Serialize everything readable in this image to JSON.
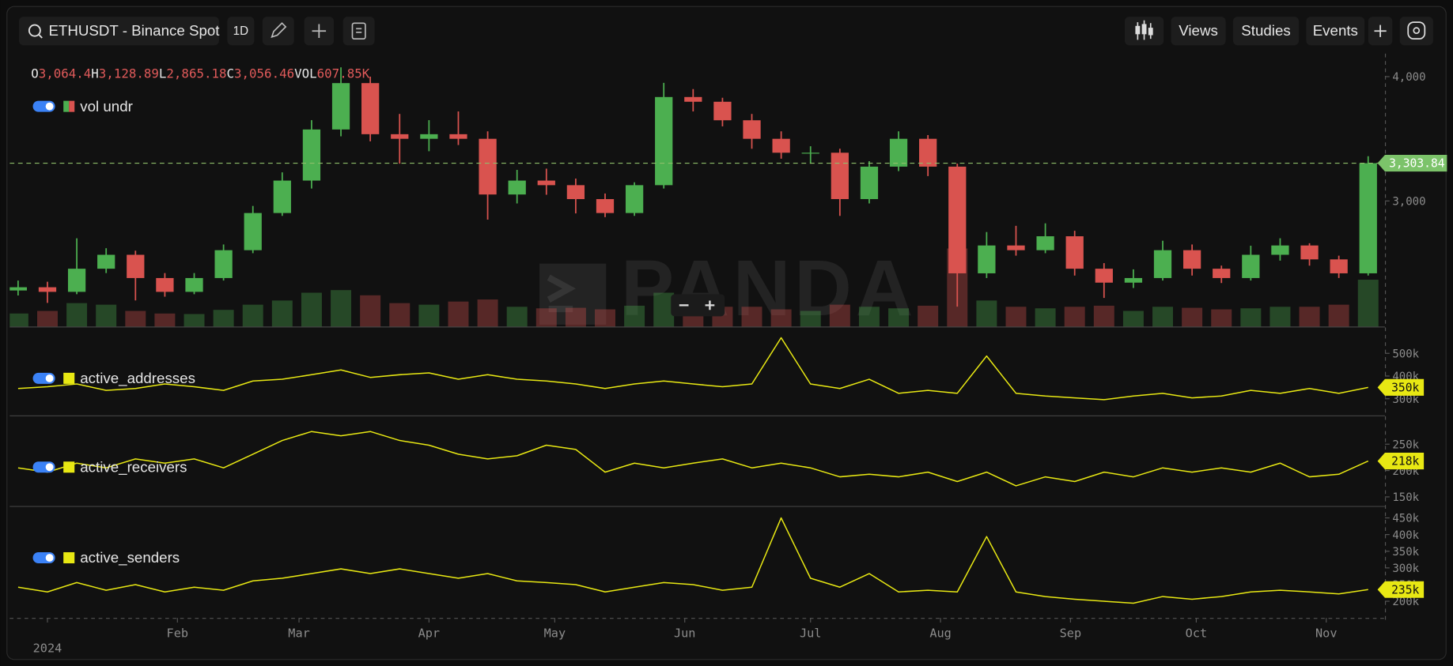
{
  "toolbar": {
    "symbol": "ETHUSDT - Binance Spot",
    "interval": "1D",
    "buttons": [
      "Views",
      "Studies",
      "Events"
    ]
  },
  "watermark": "PANDA",
  "ohlc_readout": {
    "keys": [
      "O",
      "H",
      "L",
      "C",
      "VOL"
    ],
    "values": [
      "3,064.4",
      "3,128.89",
      "2,865.18",
      "3,056.46",
      "607.85K"
    ]
  },
  "chart_data": [
    {
      "type": "candlestick",
      "name": "vol undr",
      "up_color": "#4caf50",
      "down_color": "#d9534f",
      "x": [
        -7,
        0,
        7,
        14,
        21,
        28,
        35,
        42,
        49,
        56,
        63,
        70,
        77,
        84,
        91,
        98,
        105,
        112,
        119,
        126,
        133,
        140,
        147,
        154,
        161,
        168,
        175,
        182,
        189,
        196,
        203,
        210,
        217,
        224,
        231,
        238,
        245,
        252,
        259,
        266,
        273,
        280,
        287,
        294,
        301,
        308,
        315
      ],
      "open": [
        2280,
        2306,
        2269,
        2455,
        2567,
        2380,
        2269,
        2380,
        2604,
        2903,
        3164,
        3575,
        3948,
        3537,
        3500,
        3537,
        3500,
        3052,
        3164,
        3127,
        3015,
        2903,
        3127,
        3836,
        3798,
        3649,
        3500,
        3388,
        3388,
        3015,
        3276,
        3500,
        3276,
        2418,
        2642,
        2604,
        2716,
        2455,
        2343,
        2380,
        2604,
        2455,
        2380,
        2567,
        2642,
        2530,
        2418
      ],
      "high": [
        2360,
        2350,
        2700,
        2620,
        2600,
        2420,
        2420,
        2650,
        2960,
        3230,
        3650,
        4075,
        4000,
        3700,
        3650,
        3720,
        3560,
        3250,
        3260,
        3180,
        3060,
        3150,
        3950,
        3900,
        3830,
        3700,
        3560,
        3440,
        3420,
        3320,
        3560,
        3530,
        3300,
        2750,
        2800,
        2820,
        2760,
        2500,
        2450,
        2680,
        2650,
        2480,
        2640,
        2700,
        2660,
        2560,
        3360
      ],
      "low": [
        2240,
        2180,
        2250,
        2420,
        2200,
        2230,
        2250,
        2360,
        2580,
        2880,
        3100,
        3520,
        3480,
        3300,
        3400,
        3450,
        2850,
        2980,
        3050,
        2900,
        2870,
        2880,
        3100,
        3720,
        3600,
        3420,
        3340,
        3300,
        2880,
        2980,
        3240,
        3200,
        2150,
        2380,
        2560,
        2580,
        2400,
        2220,
        2300,
        2360,
        2400,
        2340,
        2360,
        2520,
        2480,
        2380,
        2400
      ],
      "close": [
        2306,
        2269,
        2455,
        2567,
        2380,
        2269,
        2380,
        2604,
        2903,
        3164,
        3575,
        3948,
        3537,
        3500,
        3537,
        3500,
        3052,
        3164,
        3127,
        3015,
        2903,
        3127,
        3836,
        3798,
        3649,
        3500,
        3388,
        3388,
        3015,
        3276,
        3500,
        3276,
        2418,
        2642,
        2604,
        2716,
        2455,
        2343,
        2380,
        2604,
        2455,
        2380,
        2567,
        2642,
        2530,
        2418,
        3303.84
      ],
      "volume": [
        250,
        300,
        450,
        420,
        300,
        250,
        240,
        320,
        420,
        500,
        650,
        700,
        600,
        450,
        420,
        480,
        520,
        380,
        350,
        360,
        330,
        400,
        650,
        450,
        380,
        380,
        330,
        300,
        420,
        380,
        350,
        400,
        1500,
        500,
        380,
        350,
        380,
        400,
        300,
        380,
        360,
        330,
        350,
        380,
        380,
        420,
        900
      ],
      "volume_lim": [
        0,
        1600
      ],
      "xlim": [
        -9,
        319
      ],
      "ylim": [
        1990,
        4170
      ],
      "yticks": [
        {
          "value": 3000,
          "label": "3,000"
        },
        {
          "value": 4000,
          "label": "4,000"
        }
      ],
      "price_line": {
        "value": 3303.84,
        "label": "3,303.84"
      }
    },
    {
      "type": "line",
      "x": [
        -7,
        0,
        7,
        14,
        21,
        28,
        35,
        42,
        49,
        56,
        63,
        70,
        77,
        84,
        91,
        98,
        105,
        112,
        119,
        126,
        133,
        140,
        147,
        154,
        161,
        168,
        175,
        182,
        189,
        196,
        203,
        210,
        217,
        224,
        231,
        238,
        245,
        252,
        259,
        266,
        273,
        280,
        287,
        294,
        301,
        308,
        315
      ],
      "xlim": [
        -9,
        319
      ],
      "ylim": [
        231000,
        610000
      ],
      "yticks": [
        {
          "value": 500000,
          "label": "500k"
        },
        {
          "value": 400000,
          "label": "400k"
        },
        {
          "value": 300000,
          "label": "300k"
        }
      ],
      "series": [
        {
          "name": "active_addresses",
          "color": "#e8e813",
          "values": [
            345000,
            353000,
            365000,
            337000,
            345000,
            365000,
            353000,
            337000,
            378000,
            386000,
            406000,
            427000,
            394000,
            406000,
            414000,
            386000,
            406000,
            386000,
            378000,
            365000,
            345000,
            365000,
            378000,
            365000,
            353000,
            365000,
            569000,
            365000,
            345000,
            386000,
            324000,
            337000,
            324000,
            488000,
            324000,
            312000,
            304000,
            296000,
            312000,
            324000,
            304000,
            312000,
            337000,
            324000,
            345000,
            324000,
            350000
          ],
          "value_labels": [
            null,
            null,
            null,
            null,
            null,
            null,
            null,
            null,
            null,
            null,
            null,
            null,
            null,
            null,
            null,
            null,
            null,
            null,
            null,
            null,
            null,
            null,
            null,
            null,
            null,
            null,
            null,
            null,
            null,
            null,
            null,
            null,
            null,
            null,
            null,
            null,
            null,
            null,
            null,
            null,
            null,
            null,
            null,
            null,
            null,
            null,
            "350k"
          ]
        }
      ]
    },
    {
      "type": "line",
      "x": [
        -7,
        0,
        7,
        14,
        21,
        28,
        35,
        42,
        49,
        56,
        63,
        70,
        77,
        84,
        91,
        98,
        105,
        112,
        119,
        126,
        133,
        140,
        147,
        154,
        161,
        168,
        175,
        182,
        189,
        196,
        203,
        210,
        217,
        224,
        231,
        238,
        245,
        252,
        259,
        266,
        273,
        280,
        287,
        294,
        301,
        308,
        315
      ],
      "xlim": [
        -9,
        319
      ],
      "ylim": [
        134500,
        303000
      ],
      "yticks": [
        {
          "value": 250000,
          "label": "250k"
        },
        {
          "value": 200000,
          "label": "200k"
        },
        {
          "value": 150000,
          "label": "150k"
        }
      ],
      "series": [
        {
          "name": "active_receivers",
          "color": "#e8e813",
          "values": [
            205000,
            197000,
            214000,
            205000,
            222000,
            214000,
            222000,
            205000,
            231000,
            257000,
            274000,
            266000,
            274000,
            257000,
            248000,
            231000,
            222000,
            228000,
            248000,
            240000,
            197000,
            214000,
            205000,
            214000,
            222000,
            205000,
            214000,
            205000,
            188000,
            193000,
            188000,
            197000,
            179000,
            197000,
            171000,
            188000,
            179000,
            197000,
            188000,
            205000,
            197000,
            205000,
            197000,
            214000,
            188000,
            193000,
            218000
          ],
          "value_labels": [
            null,
            null,
            null,
            null,
            null,
            null,
            null,
            null,
            null,
            null,
            null,
            null,
            null,
            null,
            null,
            null,
            null,
            null,
            null,
            null,
            null,
            null,
            null,
            null,
            null,
            null,
            null,
            null,
            null,
            null,
            null,
            null,
            null,
            null,
            null,
            null,
            null,
            null,
            null,
            null,
            null,
            null,
            null,
            null,
            null,
            null,
            "218k"
          ]
        }
      ]
    },
    {
      "type": "line",
      "x": [
        -7,
        0,
        7,
        14,
        21,
        28,
        35,
        42,
        49,
        56,
        63,
        70,
        77,
        84,
        91,
        98,
        105,
        112,
        119,
        126,
        133,
        140,
        147,
        154,
        161,
        168,
        175,
        182,
        189,
        196,
        203,
        210,
        217,
        224,
        231,
        238,
        245,
        252,
        259,
        266,
        273,
        280,
        287,
        294,
        301,
        308,
        315
      ],
      "xlim": [
        -9,
        319
      ],
      "xticks": [
        {
          "value": 0,
          "label": "2024"
        },
        {
          "value": 31,
          "label": "Feb"
        },
        {
          "value": 60,
          "label": "Mar"
        },
        {
          "value": 91,
          "label": "Apr"
        },
        {
          "value": 121,
          "label": "May"
        },
        {
          "value": 152,
          "label": "Jun"
        },
        {
          "value": 182,
          "label": "Jul"
        },
        {
          "value": 213,
          "label": "Aug"
        },
        {
          "value": 244,
          "label": "Sep"
        },
        {
          "value": 274,
          "label": "Oct"
        },
        {
          "value": 305,
          "label": "Nov"
        }
      ],
      "ylim": [
        150000,
        483000
      ],
      "yticks": [
        {
          "value": 450000,
          "label": "450k"
        },
        {
          "value": 400000,
          "label": "400k"
        },
        {
          "value": 350000,
          "label": "350k"
        },
        {
          "value": 300000,
          "label": "300k"
        },
        {
          "value": 250000,
          "label": "250k"
        },
        {
          "value": 200000,
          "label": "200k"
        }
      ],
      "series": [
        {
          "name": "active_senders",
          "color": "#e8e813",
          "values": [
            242000,
            228000,
            256000,
            233000,
            250000,
            228000,
            242000,
            233000,
            261000,
            269000,
            283000,
            297000,
            283000,
            297000,
            283000,
            269000,
            283000,
            261000,
            256000,
            250000,
            228000,
            242000,
            256000,
            250000,
            233000,
            242000,
            450000,
            269000,
            242000,
            283000,
            228000,
            233000,
            228000,
            394000,
            228000,
            214000,
            206000,
            200000,
            194000,
            214000,
            206000,
            214000,
            228000,
            233000,
            228000,
            222000,
            235000
          ],
          "value_labels": [
            null,
            null,
            null,
            null,
            null,
            null,
            null,
            null,
            null,
            null,
            null,
            null,
            null,
            null,
            null,
            null,
            null,
            null,
            null,
            null,
            null,
            null,
            null,
            null,
            null,
            null,
            null,
            null,
            null,
            null,
            null,
            null,
            null,
            null,
            null,
            null,
            null,
            null,
            null,
            null,
            null,
            null,
            null,
            null,
            null,
            null,
            "235k"
          ]
        }
      ]
    }
  ]
}
